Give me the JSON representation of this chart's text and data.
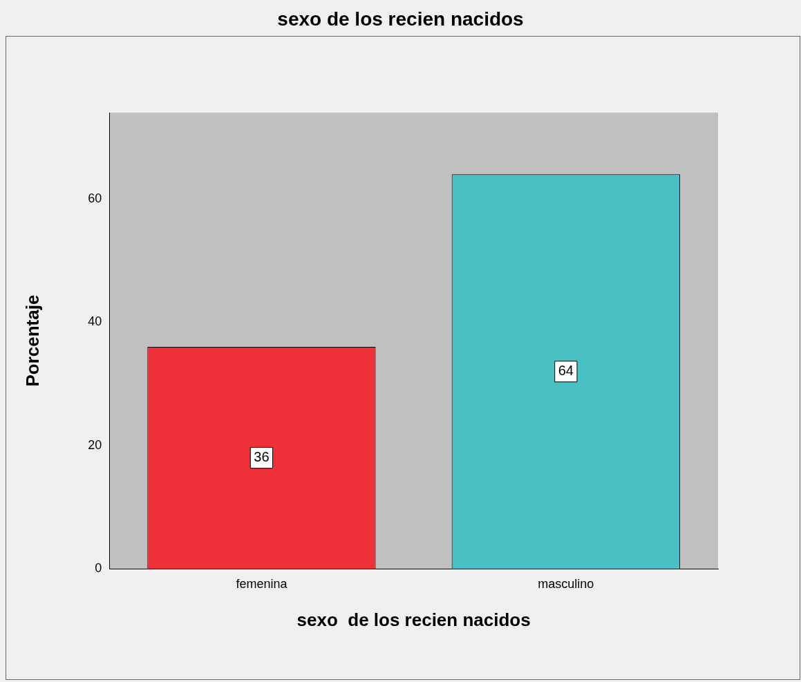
{
  "chart_data": {
    "type": "bar",
    "title": "sexo  de los recien nacidos",
    "xlabel": "sexo  de los recien nacidos",
    "ylabel": "Porcentaje",
    "categories": [
      "femenina",
      "masculino"
    ],
    "values": [
      36,
      64
    ],
    "colors": [
      "#ee3139",
      "#48c0c4"
    ],
    "ylim": [
      0,
      74
    ],
    "yticks": [
      0,
      20,
      40,
      60
    ],
    "data_labels": true,
    "grid": false,
    "legend": false
  }
}
